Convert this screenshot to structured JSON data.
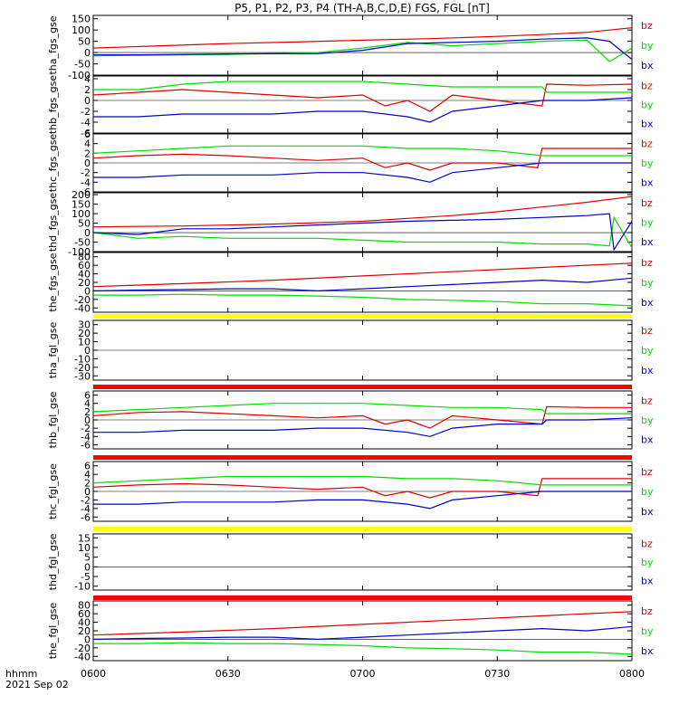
{
  "title": "P5, P1, P2, P3, P4 (TH-A,B,C,D,E) FGS, FGL [nT]",
  "time_label": "hhmm",
  "date_label": "2021 Sep 02",
  "x_ticks": [
    "0600",
    "0630",
    "0700",
    "0730",
    "0800"
  ],
  "colors": {
    "bz": "#dd0000",
    "by": "#00dd00",
    "bx": "#0000cc",
    "flag_yellow": "#ffff00",
    "flag_red": "#ff0000"
  },
  "chart_data": [
    {
      "type": "line",
      "ylabel": "tha_fgs_gse",
      "ylim": [
        -100,
        165
      ],
      "yticks": [
        150,
        100,
        50,
        0,
        -50,
        -100
      ],
      "series": [
        {
          "name": "bz",
          "x": [
            0,
            12,
            30,
            45,
            60,
            75,
            90,
            100,
            110,
            120
          ],
          "values": [
            20,
            28,
            40,
            47,
            55,
            62,
            72,
            80,
            90,
            110
          ]
        },
        {
          "name": "by",
          "x": [
            0,
            10,
            20,
            30,
            40,
            50,
            60,
            70,
            80,
            90,
            100,
            110,
            115,
            120
          ],
          "values": [
            -15,
            -12,
            -10,
            -8,
            -5,
            0,
            20,
            45,
            30,
            40,
            50,
            55,
            -40,
            20
          ]
        },
        {
          "name": "bx",
          "x": [
            0,
            10,
            20,
            30,
            40,
            50,
            60,
            70,
            80,
            90,
            100,
            110,
            115,
            120
          ],
          "values": [
            -10,
            -10,
            -8,
            -6,
            -5,
            -5,
            10,
            40,
            45,
            50,
            60,
            65,
            50,
            -30
          ]
        }
      ]
    },
    {
      "type": "line",
      "ylabel": "thb_fgs_gse",
      "ylim": [
        -6,
        4.5
      ],
      "yticks": [
        4,
        2,
        0,
        -2,
        -4,
        -6
      ],
      "series": [
        {
          "name": "bz",
          "x": [
            0,
            10,
            20,
            30,
            40,
            50,
            60,
            65,
            70,
            75,
            80,
            90,
            100,
            101,
            110,
            120
          ],
          "values": [
            1,
            1.5,
            2,
            1.5,
            1,
            0.5,
            1,
            -1,
            0,
            -2,
            1,
            0,
            -1,
            3,
            2.8,
            3
          ]
        },
        {
          "name": "by",
          "x": [
            0,
            10,
            20,
            30,
            40,
            50,
            60,
            70,
            80,
            90,
            100,
            101,
            110,
            120
          ],
          "values": [
            2,
            2,
            3,
            3.5,
            3.5,
            3.5,
            3.5,
            3,
            2.5,
            2.5,
            2.5,
            1.5,
            1.5,
            1.5
          ]
        },
        {
          "name": "bx",
          "x": [
            0,
            10,
            20,
            30,
            40,
            50,
            60,
            70,
            75,
            80,
            90,
            100,
            101,
            110,
            120
          ],
          "values": [
            -3,
            -3,
            -2.5,
            -2.5,
            -2.5,
            -2,
            -2,
            -3,
            -4,
            -2,
            -1,
            0,
            0,
            0,
            0.5
          ]
        }
      ]
    },
    {
      "type": "line",
      "ylabel": "thc_fgs_gse",
      "ylim": [
        -6,
        6
      ],
      "yticks": [
        6,
        4,
        2,
        0,
        -2,
        -4,
        -6
      ],
      "series": [
        {
          "name": "bz",
          "x": [
            0,
            10,
            20,
            30,
            40,
            50,
            60,
            65,
            70,
            75,
            80,
            90,
            99,
            100,
            110,
            120
          ],
          "values": [
            1,
            1.5,
            1.8,
            1.5,
            1,
            0.5,
            1,
            -1,
            0,
            -1.5,
            0,
            0,
            -1,
            3,
            3,
            3
          ]
        },
        {
          "name": "by",
          "x": [
            0,
            10,
            20,
            30,
            40,
            50,
            60,
            70,
            80,
            90,
            100,
            110,
            120
          ],
          "values": [
            2,
            2.5,
            3,
            3.5,
            3.5,
            3.5,
            3.5,
            3,
            3,
            2.5,
            1.5,
            1.5,
            1.5
          ]
        },
        {
          "name": "bx",
          "x": [
            0,
            10,
            20,
            30,
            40,
            50,
            60,
            70,
            75,
            80,
            90,
            100,
            110,
            120
          ],
          "values": [
            -3,
            -3,
            -2.5,
            -2.5,
            -2.5,
            -2,
            -2,
            -3,
            -4,
            -2,
            -1,
            0,
            0,
            0
          ]
        }
      ]
    },
    {
      "type": "line",
      "ylabel": "thd_fgs_gse",
      "ylim": [
        -100,
        210
      ],
      "yticks": [
        200,
        150,
        100,
        50,
        0,
        -50,
        -100
      ],
      "series": [
        {
          "name": "bz",
          "x": [
            0,
            20,
            40,
            60,
            70,
            80,
            90,
            100,
            110,
            120
          ],
          "values": [
            30,
            35,
            45,
            60,
            75,
            90,
            110,
            135,
            160,
            190
          ]
        },
        {
          "name": "by",
          "x": [
            0,
            10,
            20,
            30,
            40,
            50,
            60,
            70,
            80,
            90,
            100,
            110,
            115,
            116,
            120
          ],
          "values": [
            0,
            -30,
            -20,
            -30,
            -30,
            -30,
            -40,
            -50,
            -50,
            -50,
            -60,
            -60,
            -70,
            80,
            -80
          ]
        },
        {
          "name": "bx",
          "x": [
            0,
            10,
            20,
            30,
            40,
            50,
            60,
            70,
            80,
            90,
            100,
            110,
            115,
            116,
            120
          ],
          "values": [
            0,
            -10,
            20,
            20,
            30,
            40,
            50,
            60,
            65,
            70,
            80,
            90,
            100,
            -90,
            60
          ]
        }
      ]
    },
    {
      "type": "line",
      "ylabel": "the_fgs_gse",
      "ylim": [
        -50,
        90
      ],
      "yticks": [
        80,
        60,
        40,
        20,
        0,
        -20,
        -40
      ],
      "series": [
        {
          "name": "bz",
          "x": [
            0,
            20,
            40,
            60,
            80,
            100,
            110,
            120
          ],
          "values": [
            10,
            17,
            25,
            35,
            45,
            55,
            60,
            65
          ]
        },
        {
          "name": "by",
          "x": [
            0,
            10,
            20,
            30,
            40,
            50,
            60,
            70,
            80,
            90,
            100,
            110,
            120
          ],
          "values": [
            -10,
            -10,
            -8,
            -10,
            -10,
            -12,
            -15,
            -20,
            -22,
            -25,
            -30,
            -30,
            -35
          ]
        },
        {
          "name": "bx",
          "x": [
            0,
            10,
            20,
            30,
            40,
            50,
            60,
            70,
            80,
            90,
            100,
            110,
            120
          ],
          "values": [
            0,
            2,
            3,
            5,
            5,
            0,
            5,
            10,
            15,
            20,
            25,
            20,
            30
          ]
        }
      ]
    },
    {
      "type": "line",
      "ylabel": "tha_fgl_gse",
      "ylim": [
        -35,
        35
      ],
      "yticks": [
        30,
        20,
        10,
        0,
        -10,
        -20,
        -30
      ],
      "series": [
        {
          "name": "bz",
          "x": [],
          "values": []
        },
        {
          "name": "by",
          "x": [],
          "values": []
        },
        {
          "name": "bx",
          "x": [],
          "values": []
        }
      ]
    },
    {
      "type": "line",
      "ylabel": "thb_fgl_gse",
      "ylim": [
        -7,
        7
      ],
      "yticks": [
        6,
        4,
        2,
        0,
        -2,
        -4,
        -6
      ],
      "series": [
        {
          "name": "bz",
          "x": [
            0,
            10,
            20,
            30,
            40,
            50,
            60,
            65,
            70,
            75,
            80,
            90,
            100,
            101,
            110,
            120
          ],
          "values": [
            1,
            1.8,
            2,
            1.5,
            1,
            0.5,
            1,
            -1,
            0,
            -2,
            1,
            0,
            -1,
            3.2,
            3,
            3
          ]
        },
        {
          "name": "by",
          "x": [
            0,
            10,
            20,
            30,
            40,
            50,
            60,
            70,
            80,
            90,
            100,
            101,
            110,
            120
          ],
          "values": [
            2,
            2.5,
            3,
            3.5,
            4,
            4,
            4,
            3.5,
            3,
            3,
            2.5,
            1.5,
            1.5,
            1.5
          ]
        },
        {
          "name": "bx",
          "x": [
            0,
            10,
            20,
            30,
            40,
            50,
            60,
            70,
            75,
            80,
            90,
            100,
            101,
            110,
            120
          ],
          "values": [
            -3,
            -3,
            -2.5,
            -2.5,
            -2.5,
            -2,
            -2,
            -3,
            -4,
            -2,
            -1,
            -1,
            0,
            0,
            0.5
          ]
        }
      ]
    },
    {
      "type": "line",
      "ylabel": "thc_fgl_gse",
      "ylim": [
        -7,
        7
      ],
      "yticks": [
        6,
        4,
        2,
        0,
        -2,
        -4,
        -6
      ],
      "series": [
        {
          "name": "bz",
          "x": [
            0,
            10,
            20,
            30,
            40,
            50,
            60,
            65,
            70,
            75,
            80,
            90,
            99,
            100,
            110,
            120
          ],
          "values": [
            1,
            1.5,
            1.8,
            1.5,
            1,
            0.5,
            1,
            -1,
            0,
            -1.5,
            0,
            0,
            -1,
            3,
            3,
            3
          ]
        },
        {
          "name": "by",
          "x": [
            0,
            10,
            20,
            30,
            40,
            50,
            60,
            70,
            80,
            90,
            100,
            110,
            120
          ],
          "values": [
            2,
            2.5,
            3,
            3.5,
            3.5,
            3.5,
            3.5,
            3,
            3,
            2.5,
            1.5,
            1.5,
            1.5
          ]
        },
        {
          "name": "bx",
          "x": [
            0,
            10,
            20,
            30,
            40,
            50,
            60,
            70,
            75,
            80,
            90,
            100,
            110,
            120
          ],
          "values": [
            -3,
            -3,
            -2.5,
            -2.5,
            -2.5,
            -2,
            -2,
            -3,
            -4,
            -2,
            -1,
            0,
            0,
            0
          ]
        }
      ]
    },
    {
      "type": "line",
      "ylabel": "thd_fgl_gse",
      "ylim": [
        -12,
        17
      ],
      "yticks": [
        15,
        10,
        5,
        0,
        -5,
        -10
      ],
      "series": [
        {
          "name": "bz",
          "x": [],
          "values": []
        },
        {
          "name": "by",
          "x": [],
          "values": []
        },
        {
          "name": "bx",
          "x": [],
          "values": []
        }
      ]
    },
    {
      "type": "line",
      "ylabel": "the_fgl_gse",
      "ylim": [
        -50,
        90
      ],
      "yticks": [
        80,
        60,
        40,
        20,
        0,
        -20,
        -40
      ],
      "series": [
        {
          "name": "bz",
          "x": [
            0,
            20,
            40,
            60,
            80,
            100,
            110,
            120
          ],
          "values": [
            10,
            17,
            25,
            35,
            45,
            55,
            60,
            65
          ]
        },
        {
          "name": "by",
          "x": [
            0,
            10,
            20,
            30,
            40,
            50,
            60,
            70,
            80,
            90,
            100,
            110,
            120
          ],
          "values": [
            -10,
            -10,
            -8,
            -10,
            -10,
            -12,
            -15,
            -20,
            -22,
            -25,
            -30,
            -30,
            -35
          ]
        },
        {
          "name": "bx",
          "x": [
            0,
            10,
            20,
            30,
            40,
            50,
            60,
            70,
            80,
            90,
            100,
            110,
            120
          ],
          "values": [
            0,
            2,
            3,
            5,
            5,
            0,
            5,
            10,
            15,
            20,
            25,
            20,
            30
          ]
        }
      ]
    }
  ]
}
